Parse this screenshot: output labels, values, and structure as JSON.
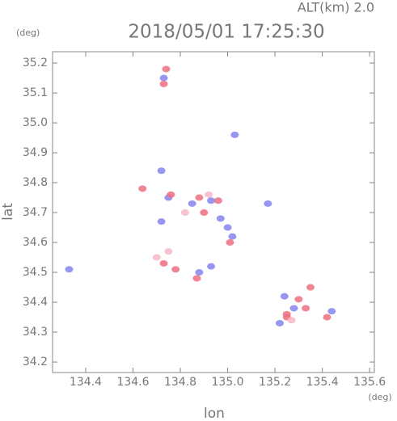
{
  "chart_data": {
    "type": "scatter",
    "header": "ALT(km) 2.0",
    "title": "2018/05/01 17:25:30",
    "y_unit": "(deg)",
    "x_unit": "(deg)",
    "xlabel": "lon",
    "ylabel": "lat",
    "xlim": [
      134.26,
      135.62
    ],
    "ylim": [
      34.165,
      35.238
    ],
    "xticks": [
      134.4,
      134.6,
      134.8,
      {
        "value": 135,
        "label": "135.0"
      },
      135.2,
      135.4,
      135.6
    ],
    "yticks": [
      35.2,
      35.1,
      {
        "value": 35,
        "label": "35.0"
      },
      34.9,
      34.8,
      34.7,
      34.6,
      34.5,
      34.4,
      34.3,
      34.2
    ],
    "series": [
      {
        "color": "#8585ee",
        "x": [
          134.33,
          134.72,
          134.75,
          134.85,
          134.93,
          134.97,
          135.02,
          134.72,
          135.17,
          134.93,
          135.24,
          135.28,
          135.22,
          135.44,
          135.03,
          134.73,
          134.88,
          135.0
        ],
        "y": [
          34.51,
          34.84,
          34.75,
          34.73,
          34.74,
          34.68,
          34.62,
          34.67,
          34.73,
          34.52,
          34.42,
          34.38,
          34.33,
          34.37,
          34.96,
          35.15,
          34.5,
          34.65
        ]
      },
      {
        "color": "#ee6e80",
        "x": [
          134.74,
          134.73,
          134.64,
          134.76,
          134.88,
          134.96,
          135.01,
          134.73,
          134.78,
          134.87,
          135.25,
          135.3,
          135.35,
          135.33,
          135.42,
          135.25,
          134.9
        ],
        "y": [
          35.18,
          35.13,
          34.78,
          34.76,
          34.75,
          34.74,
          34.6,
          34.53,
          34.51,
          34.48,
          34.36,
          34.41,
          34.45,
          34.38,
          34.35,
          34.35,
          34.7
        ]
      },
      {
        "color": "#f4b8c6",
        "x": [
          134.7,
          134.75,
          134.82,
          134.92,
          135.27
        ],
        "y": [
          34.55,
          34.57,
          34.7,
          34.76,
          34.34
        ]
      }
    ]
  }
}
